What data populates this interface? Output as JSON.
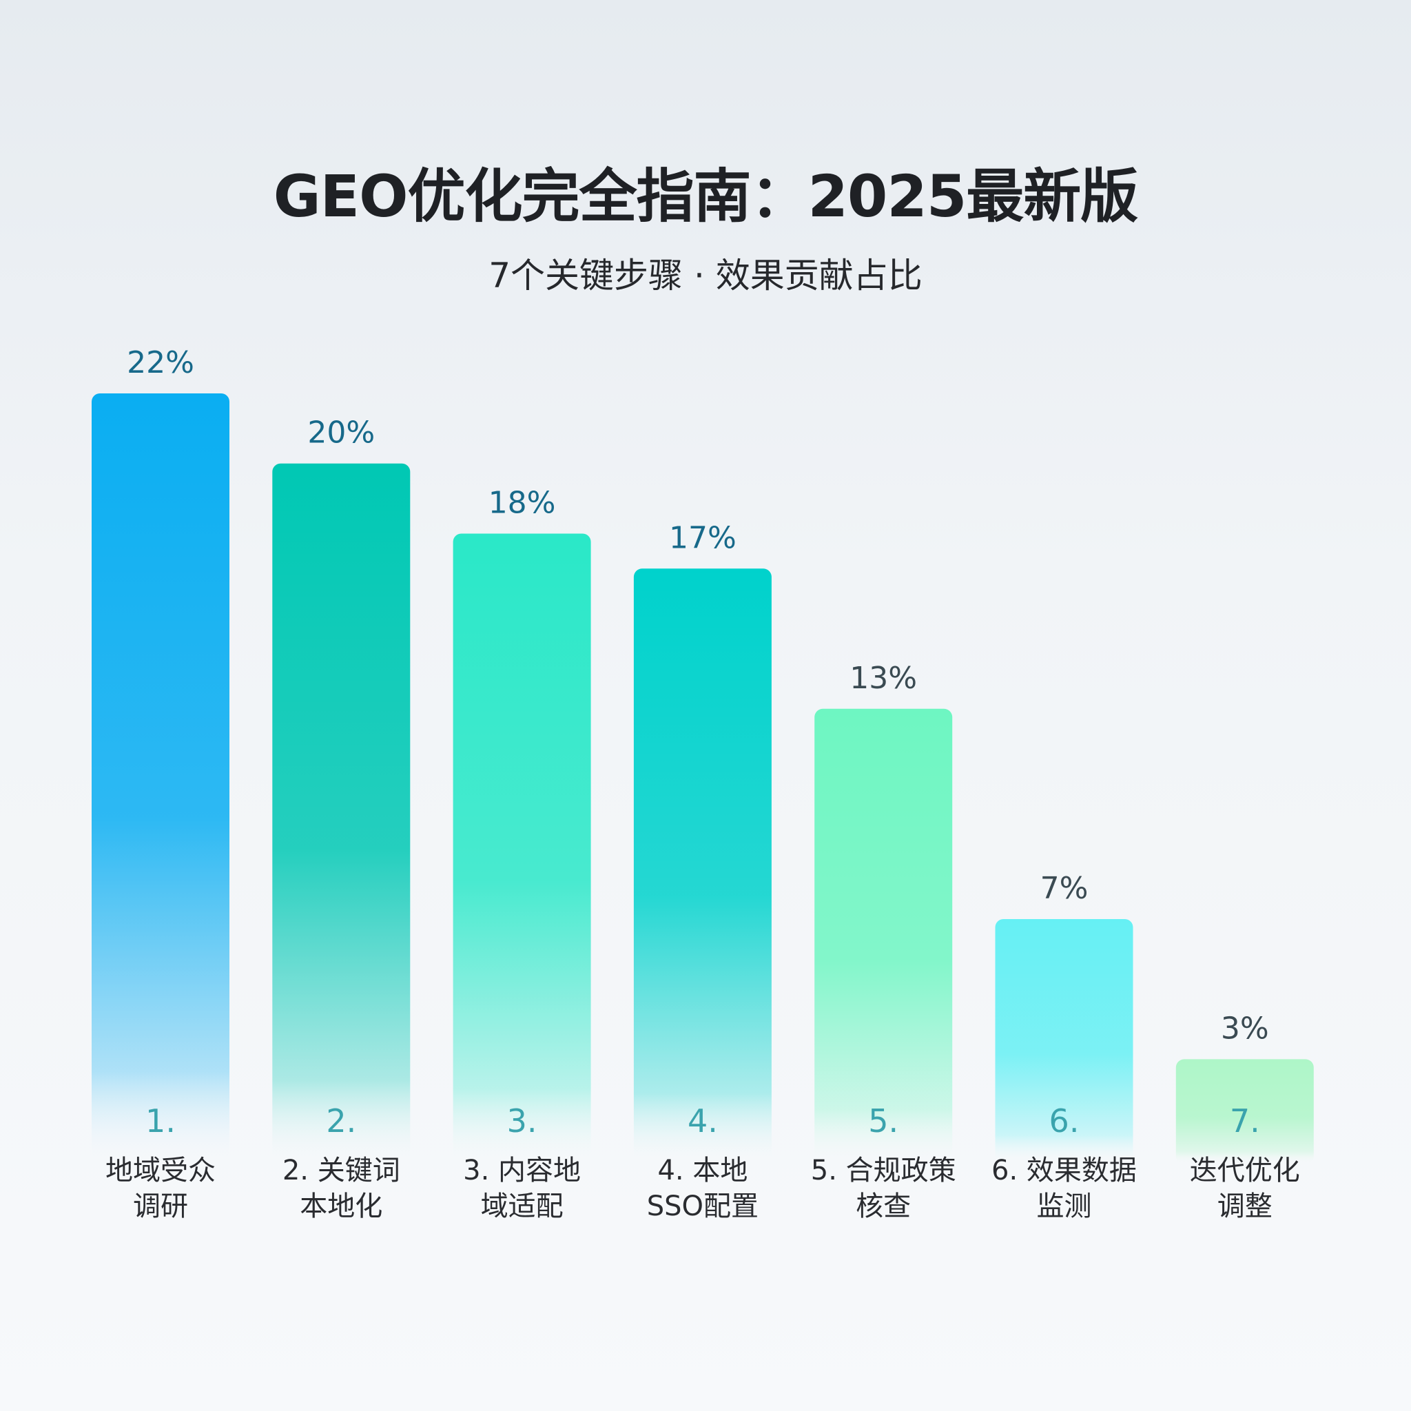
{
  "header": {
    "title": "GEO优化完全指南：2025最新版",
    "subtitle": "7个关键步骤 · 效果贡献占比"
  },
  "colors": {
    "value_label": "#17698a",
    "value_label_light": "#3a4a52",
    "number_label": "#3aa3ad"
  },
  "chart_data": {
    "type": "bar",
    "title": "GEO优化完全指南：2025最新版",
    "subtitle": "7个关键步骤 · 效果贡献占比",
    "xlabel": "",
    "ylabel": "",
    "ylim": [
      0,
      22
    ],
    "grid": false,
    "legend": "none",
    "categories": [
      "1. 地域受众调研",
      "2. 关键词本地化",
      "3. 内容地域适配",
      "4. 本地SSO配置",
      "5. 合规政策核查",
      "6. 效果数据监测",
      "7. 迭代优化调整"
    ],
    "values": [
      22,
      20,
      18,
      17,
      13,
      7,
      3
    ],
    "value_labels": [
      "22%",
      "20%",
      "18%",
      "17%",
      "13%",
      "7%",
      "3%"
    ],
    "number_labels": [
      "1.",
      "2.",
      "3.",
      "4.",
      "5.",
      "6.",
      "7."
    ],
    "category_lines": [
      [
        "地域受众",
        "调研"
      ],
      [
        "2. 关键词",
        "本地化"
      ],
      [
        "3. 内容地",
        "域适配"
      ],
      [
        "4. 本地",
        "SSO配置"
      ],
      [
        "5. 合规政策",
        "核查"
      ],
      [
        "6. 效果数据",
        "监测"
      ],
      [
        "迭代优化",
        "调整"
      ]
    ],
    "bar_colors": [
      "#0aaef2",
      "#00c8b4",
      "#2ae8c8",
      "#00d2cc",
      "#6ef6c2",
      "#66f0f4",
      "#aef6c8"
    ]
  }
}
